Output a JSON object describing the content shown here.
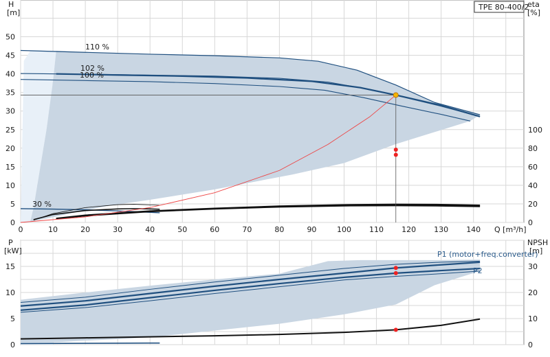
{
  "chart_data": [
    {
      "type": "line",
      "panel": "head",
      "ylabel": "H",
      "yunit": "[m]",
      "y2label": "eta",
      "y2unit": "[%]",
      "xlabel": "Q [m³/h]",
      "title": "TPE 80-400/2",
      "xlim": [
        0,
        150
      ],
      "ylim": [
        0,
        55
      ],
      "y2lim": [
        0,
        135
      ],
      "xticks": [
        "0",
        "10",
        "20",
        "30",
        "40",
        "50",
        "60",
        "70",
        "80",
        "90",
        "100",
        "110",
        "120",
        "130",
        "140"
      ],
      "yticks": [
        "0",
        "5",
        "10",
        "15",
        "20",
        "25",
        "30",
        "35",
        "40",
        "45",
        "50"
      ],
      "y2ticks": [
        "0",
        "20",
        "40",
        "60",
        "80",
        "100"
      ],
      "grid": true,
      "operating_point": {
        "x": 116,
        "y": 34.3
      },
      "annotations": [
        "110 %",
        "102 %",
        "100 %",
        "30 %"
      ],
      "envelope": [
        [
          3,
          0.2
        ],
        [
          4,
          4
        ],
        [
          8,
          25
        ],
        [
          10,
          38
        ],
        [
          11,
          46.2
        ],
        [
          20,
          45.8
        ],
        [
          40,
          45.3
        ],
        [
          60,
          44.9
        ],
        [
          80,
          44.3
        ],
        [
          92,
          43.4
        ],
        [
          104,
          41
        ],
        [
          116,
          37
        ],
        [
          128,
          32.3
        ],
        [
          142,
          29
        ],
        [
          139,
          27.3
        ],
        [
          116,
          21.1
        ],
        [
          100,
          16
        ],
        [
          84,
          12.9
        ],
        [
          60,
          8.9
        ],
        [
          40,
          6.1
        ],
        [
          28,
          4.6
        ],
        [
          18,
          2.9
        ],
        [
          10,
          1.4
        ],
        [
          3,
          0.2
        ]
      ],
      "envelope_left": [
        [
          0,
          0
        ],
        [
          1,
          43.5
        ],
        [
          3,
          46.2
        ],
        [
          10,
          46.2
        ],
        [
          11,
          46.2
        ],
        [
          10,
          38
        ],
        [
          8,
          25
        ],
        [
          4,
          4
        ],
        [
          3,
          0
        ]
      ],
      "series": [
        {
          "name": "110 %",
          "unit": "m",
          "values": [
            [
              0,
              46.3
            ],
            [
              20,
              45.8
            ],
            [
              40,
              45.3
            ],
            [
              60,
              44.9
            ],
            [
              80,
              44.3
            ],
            [
              92,
              43.4
            ],
            [
              104,
              41
            ],
            [
              116,
              37
            ],
            [
              128,
              32.3
            ],
            [
              142,
              29
            ]
          ]
        },
        {
          "name": "102 %",
          "unit": "m",
          "values": [
            [
              11,
              40
            ],
            [
              30,
              39.7
            ],
            [
              50,
              39.4
            ],
            [
              70,
              38.9
            ],
            [
              90,
              38
            ],
            [
              105,
              36.3
            ],
            [
              116,
              34.3
            ],
            [
              130,
              31.5
            ],
            [
              142,
              28.5
            ]
          ]
        },
        {
          "name": "100 %",
          "unit": "m",
          "values": [
            [
              0,
              38.5
            ],
            [
              20,
              38.2
            ],
            [
              40,
              37.9
            ],
            [
              60,
              37.4
            ],
            [
              80,
              36.6
            ],
            [
              94,
              35.6
            ],
            [
              106,
              33.6
            ],
            [
              118,
              31.3
            ],
            [
              130,
              29.1
            ],
            [
              139,
              27.3
            ]
          ]
        },
        {
          "name": "102 %",
          "unit": "m",
          "values": [
            [
              0,
              40.1
            ],
            [
              30,
              39.8
            ],
            [
              60,
              39.4
            ],
            [
              80,
              38.8
            ],
            [
              95,
              37.8
            ],
            [
              108,
              35.8
            ],
            [
              118,
              33.8
            ],
            [
              130,
              31.3
            ],
            [
              142,
              28.5
            ]
          ]
        },
        {
          "name": "30 %",
          "unit": "m",
          "values": [
            [
              0,
              3.7
            ],
            [
              10,
              3.6
            ],
            [
              20,
              3.4
            ],
            [
              30,
              3.1
            ],
            [
              43,
              2.6
            ]
          ]
        },
        {
          "name": "100 %",
          "unit": "%",
          "values": [
            [
              4,
              2.5
            ],
            [
              10,
              9.5
            ],
            [
              20,
              16
            ],
            [
              30,
              19.2
            ],
            [
              35,
              19.6
            ],
            [
              40,
              19
            ],
            [
              43,
              18.5
            ]
          ]
        },
        {
          "name": "102 %",
          "unit": "%",
          "values": [
            [
              4,
              3
            ],
            [
              10,
              8.5
            ],
            [
              20,
              12.8
            ],
            [
              30,
              14.6
            ],
            [
              35,
              14.9
            ],
            [
              40,
              14.6
            ],
            [
              43,
              14.2
            ]
          ]
        },
        {
          "name": "110 %",
          "unit": "%",
          "values": [
            [
              11,
              4.4
            ],
            [
              20,
              7.8
            ],
            [
              40,
              12.3
            ],
            [
              60,
              15.2
            ],
            [
              80,
              17.6
            ],
            [
              100,
              19
            ],
            [
              116,
              19.5
            ],
            [
              130,
              19.3
            ],
            [
              142,
              18.5
            ]
          ]
        },
        {
          "name": "110 %",
          "unit": "%",
          "values": [
            [
              11,
              4
            ],
            [
              20,
              7.2
            ],
            [
              40,
              11.8
            ],
            [
              60,
              14.6
            ],
            [
              80,
              16.8
            ],
            [
              100,
              18
            ],
            [
              116,
              18.2
            ],
            [
              130,
              17.9
            ],
            [
              142,
              17.2
            ]
          ]
        },
        {
          "name": "110 %",
          "unit": "%",
          "values": [
            [
              11,
              4.2
            ],
            [
              20,
              7.5
            ],
            [
              40,
              12
            ],
            [
              60,
              14.9
            ],
            [
              80,
              17.2
            ],
            [
              100,
              18.5
            ],
            [
              116,
              18.8
            ],
            [
              130,
              18.6
            ],
            [
              142,
              17.8
            ]
          ]
        },
        {
          "name": "102 %",
          "unit": "m",
          "values": [
            [
              0,
              0
            ],
            [
              20,
              1.5
            ],
            [
              40,
              4
            ],
            [
              60,
              8
            ],
            [
              80,
              14
            ],
            [
              95,
              21
            ],
            [
              108,
              28.5
            ],
            [
              116,
              34.3
            ]
          ]
        }
      ],
      "system_curve": [
        [
          0,
          0
        ],
        [
          20,
          1.5
        ],
        [
          40,
          4
        ],
        [
          60,
          8
        ],
        [
          80,
          14
        ],
        [
          95,
          21
        ],
        [
          108,
          28.5
        ],
        [
          116,
          34.3
        ]
      ],
      "eta_points": [
        {
          "x": 116,
          "y": 19.6
        },
        {
          "x": 116,
          "y": 18.2
        }
      ]
    },
    {
      "type": "line",
      "panel": "power",
      "ylabel": "P",
      "yunit": "[kW]",
      "y2label": "NPSH",
      "y2unit": "[m]",
      "xlim": [
        0,
        150
      ],
      "ylim": [
        0,
        20
      ],
      "y2lim": [
        0,
        40
      ],
      "yticks": [
        "0",
        "5",
        "10",
        "15"
      ],
      "y2ticks": [
        "0",
        "10",
        "20",
        "30"
      ],
      "grid": true,
      "labels": [
        "P1 (motor+freq.converter)",
        "P2"
      ],
      "envelope": [
        [
          0,
          8.6
        ],
        [
          20,
          10
        ],
        [
          40,
          11.3
        ],
        [
          60,
          12.5
        ],
        [
          80,
          13.6
        ],
        [
          95,
          16
        ],
        [
          105,
          16.2
        ],
        [
          128,
          16.2
        ],
        [
          142,
          16.3
        ],
        [
          142,
          14.1
        ],
        [
          128,
          11.4
        ],
        [
          116,
          7.7
        ],
        [
          100,
          5.8
        ],
        [
          80,
          4
        ],
        [
          60,
          2.7
        ],
        [
          40,
          1.4
        ],
        [
          28,
          1
        ],
        [
          18,
          0.7
        ],
        [
          12,
          0.5
        ],
        [
          0,
          0.4
        ],
        [
          0,
          8.6
        ]
      ],
      "envelope_left": [
        [
          0,
          0
        ],
        [
          0,
          7.6
        ],
        [
          10,
          8.6
        ],
        [
          10,
          0
        ],
        [
          0,
          0
        ]
      ],
      "series": [
        {
          "name": "P1 (motor+freq.converter)",
          "values": [
            [
              0,
              7.4
            ],
            [
              20,
              8.4
            ],
            [
              40,
              9.8
            ],
            [
              60,
              11.2
            ],
            [
              80,
              12.5
            ],
            [
              100,
              13.7
            ],
            [
              116,
              14.7
            ],
            [
              130,
              15.3
            ],
            [
              142,
              15.8
            ]
          ]
        },
        {
          "name": "P2",
          "values": [
            [
              0,
              6.6
            ],
            [
              20,
              7.6
            ],
            [
              40,
              9
            ],
            [
              60,
              10.4
            ],
            [
              80,
              11.7
            ],
            [
              100,
              12.9
            ],
            [
              116,
              13.7
            ],
            [
              130,
              14.2
            ],
            [
              142,
              14.6
            ]
          ]
        },
        {
          "name": "P1 (motor+freq.converter)",
          "values": [
            [
              0,
              8.1
            ],
            [
              20,
              9.1
            ],
            [
              40,
              10.6
            ],
            [
              60,
              12
            ],
            [
              80,
              13.3
            ],
            [
              100,
              14.6
            ],
            [
              116,
              15.4
            ],
            [
              130,
              15.8
            ],
            [
              142,
              16
            ]
          ]
        },
        {
          "name": "P2",
          "values": [
            [
              0,
              6.2
            ],
            [
              20,
              7.1
            ],
            [
              40,
              8.4
            ],
            [
              60,
              9.8
            ],
            [
              80,
              11.1
            ],
            [
              100,
              12.4
            ],
            [
              116,
              13.1
            ],
            [
              130,
              13.6
            ],
            [
              142,
              14.1
            ]
          ]
        },
        {
          "name": "P2",
          "values": [
            [
              0,
              0.2
            ],
            [
              20,
              0.25
            ],
            [
              40,
              0.3
            ],
            [
              43,
              0.3
            ]
          ]
        },
        {
          "name": "NPSH",
          "unit": "m",
          "values": [
            [
              0,
              2.2
            ],
            [
              20,
              2.6
            ],
            [
              40,
              3
            ],
            [
              60,
              3.4
            ],
            [
              80,
              3.9
            ],
            [
              100,
              4.7
            ],
            [
              116,
              5.7
            ],
            [
              130,
              7.4
            ],
            [
              142,
              9.8
            ]
          ]
        }
      ],
      "points": [
        {
          "x": 116,
          "y": 14.7
        },
        {
          "x": 116,
          "y": 13.7
        },
        {
          "x": 116,
          "y": 2.85
        }
      ]
    }
  ],
  "colors": {
    "grid": "#d7d7d7",
    "envelope": "#c9d6e3",
    "envelope_left": "#e8f0f8",
    "curve_blue": "#1f4f7f",
    "curve_black": "#111111",
    "system_curve": "#ee4444",
    "point": "#ee2222",
    "operating_point": "#f4b400",
    "label_blue": "#2a5a8a"
  }
}
